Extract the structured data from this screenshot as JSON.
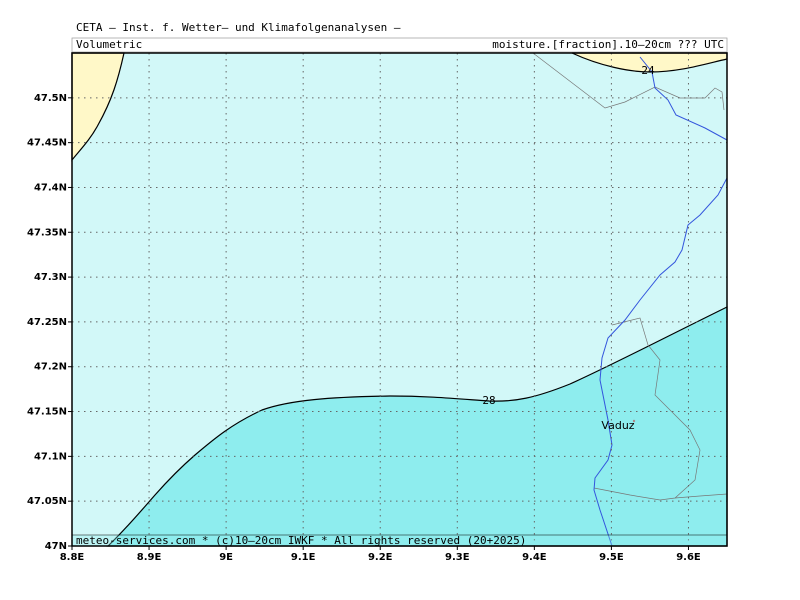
{
  "header": {
    "title": "CETA – Inst. f. Wetter– und Klimafolgenanalysen –",
    "left_label": "Volumetric",
    "right_label": "moisture.[fraction].10–20cm ??? UTC"
  },
  "footer": "meteo-services.com * (c)10–20cm IWKF * All rights reserved (20+2025)",
  "map": {
    "xlim": [
      8.8,
      9.65
    ],
    "ylim": [
      47,
      47.55
    ],
    "xticks": [
      {
        "value": 8.8,
        "label": "8.8E"
      },
      {
        "value": 8.9,
        "label": "8.9E"
      },
      {
        "value": 9,
        "label": "9E"
      },
      {
        "value": 9.1,
        "label": "9.1E"
      },
      {
        "value": 9.2,
        "label": "9.2E"
      },
      {
        "value": 9.3,
        "label": "9.3E"
      },
      {
        "value": 9.4,
        "label": "9.4E"
      },
      {
        "value": 9.5,
        "label": "9.5E"
      },
      {
        "value": 9.6,
        "label": "9.6E"
      }
    ],
    "yticks": [
      {
        "value": 47,
        "label": "47N"
      },
      {
        "value": 47.05,
        "label": "47.05N"
      },
      {
        "value": 47.1,
        "label": "47.1N"
      },
      {
        "value": 47.15,
        "label": "47.15N"
      },
      {
        "value": 47.2,
        "label": "47.2N"
      },
      {
        "value": 47.25,
        "label": "47.25N"
      },
      {
        "value": 47.3,
        "label": "47.3N"
      },
      {
        "value": 47.35,
        "label": "47.35N"
      },
      {
        "value": 47.4,
        "label": "47.4N"
      },
      {
        "value": 47.45,
        "label": "47.45N"
      },
      {
        "value": 47.5,
        "label": "47.5N"
      }
    ],
    "contour_labels": [
      "24",
      "28"
    ],
    "place": "Vaduz"
  }
}
